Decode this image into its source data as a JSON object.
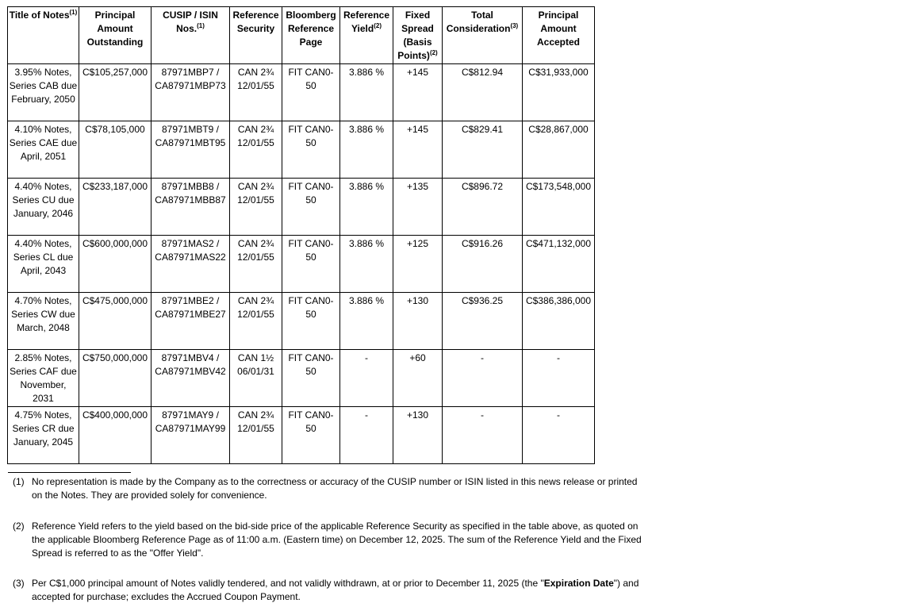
{
  "headers": [
    {
      "text": "Title of Notes",
      "sup": "(1)"
    },
    {
      "text": "Principal Amount Outstanding",
      "sup": ""
    },
    {
      "text": "CUSIP / ISIN Nos.",
      "sup": "(1)"
    },
    {
      "text": "Reference Security",
      "sup": ""
    },
    {
      "text": "Bloomberg Reference Page",
      "sup": ""
    },
    {
      "text": "Reference Yield",
      "sup": "(2)"
    },
    {
      "text": "Fixed Spread (Basis Points)",
      "sup": "(2)"
    },
    {
      "text": "Total Consideration",
      "sup": "(3)"
    },
    {
      "text": "Principal Amount Accepted",
      "sup": ""
    }
  ],
  "rows": [
    [
      "3.95% Notes, Series CAB due February, 2050",
      "C$105,257,000",
      "87971MBP7 / CA87971MBP73",
      "CAN 2¾ 12/01/55",
      "FIT CAN0-50",
      "3.886 %",
      "+145",
      "C$812.94",
      "C$31,933,000"
    ],
    [
      "4.10% Notes, Series CAE due April, 2051",
      "C$78,105,000",
      "87971MBT9 / CA87971MBT95",
      "CAN 2¾ 12/01/55",
      "FIT CAN0-50",
      "3.886 %",
      "+145",
      "C$829.41",
      "C$28,867,000"
    ],
    [
      "4.40% Notes, Series CU due January, 2046",
      "C$233,187,000",
      "87971MBB8 / CA87971MBB87",
      "CAN 2¾ 12/01/55",
      "FIT CAN0-50",
      "3.886 %",
      "+135",
      "C$896.72",
      "C$173,548,000"
    ],
    [
      "4.40% Notes, Series CL due April, 2043",
      "C$600,000,000",
      "87971MAS2 / CA87971MAS22",
      "CAN 2¾ 12/01/55",
      "FIT CAN0-50",
      "3.886 %",
      "+125",
      "C$916.26",
      "C$471,132,000"
    ],
    [
      "4.70% Notes, Series CW due March, 2048",
      "C$475,000,000",
      "87971MBE2 / CA87971MBE27",
      "CAN 2¾ 12/01/55",
      "FIT CAN0-50",
      "3.886 %",
      "+130",
      "C$936.25",
      "C$386,386,000"
    ],
    [
      "2.85% Notes, Series CAF due November, 2031",
      "C$750,000,000",
      "87971MBV4 / CA87971MBV42",
      "CAN 1½ 06/01/31",
      "FIT CAN0-50",
      "-",
      "+60",
      "-",
      "-"
    ],
    [
      "4.75% Notes, Series CR due January, 2045",
      "C$400,000,000",
      "87971MAY9 / CA87971MAY99",
      "CAN 2¾ 12/01/55",
      "FIT CAN0-50",
      "-",
      "+130",
      "-",
      "-"
    ]
  ],
  "footnotes": [
    {
      "num": "(1)",
      "text": "No representation is made by the Company as to the correctness or accuracy of the CUSIP number or ISIN listed in this news release or printed on the Notes. They are provided solely for convenience."
    },
    {
      "num": "(2)",
      "text": "Reference Yield refers to the yield based on the bid-side price of the applicable Reference Security as specified in the table above, as quoted on the applicable Bloomberg Reference Page as of 11:00 a.m. (Eastern time) on December 12, 2025. The sum of the Reference Yield and the Fixed Spread is referred to as the \"Offer Yield\"."
    },
    {
      "num": "(3)",
      "pre": "Per C$1,000 principal amount of Notes validly tendered, and not validly withdrawn, at or prior to December 11, 2025 (the \"",
      "bold": "Expiration Date",
      "post": "\") and accepted for purchase; excludes the Accrued Coupon Payment."
    }
  ]
}
